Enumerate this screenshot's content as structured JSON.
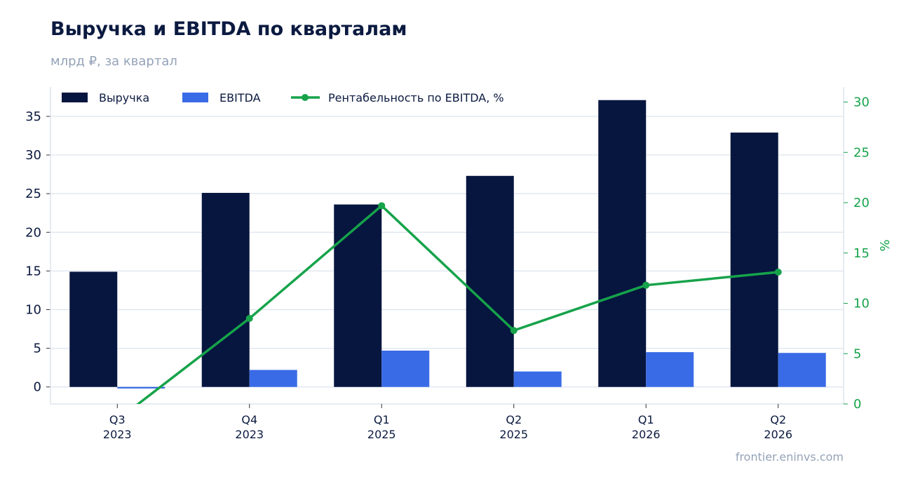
{
  "header": {
    "title": "Выручка и EBITDA по кварталам",
    "subtitle": "млрд ₽, за квартал"
  },
  "footer": {
    "source": "frontier.eninvs.com"
  },
  "colors": {
    "revenue": "#06163f",
    "ebitda": "#3a6be6",
    "margin": "#16a34a",
    "grid": "#dde3ee",
    "text": "#0b1a40"
  },
  "chart_data": {
    "type": "bar",
    "categories": [
      {
        "quarter": "Q3",
        "year": "2023"
      },
      {
        "quarter": "Q4",
        "year": "2023"
      },
      {
        "quarter": "Q1",
        "year": "2025"
      },
      {
        "quarter": "Q2",
        "year": "2025"
      },
      {
        "quarter": "Q1",
        "year": "2026"
      },
      {
        "quarter": "Q2",
        "year": "2026"
      }
    ],
    "series": [
      {
        "name": "Выручка",
        "kind": "bar",
        "axis": "left",
        "values": [
          14.9,
          25.1,
          23.6,
          27.3,
          37.1,
          32.9
        ]
      },
      {
        "name": "EBITDA",
        "kind": "bar",
        "axis": "left",
        "values": [
          -0.2,
          2.2,
          4.7,
          2.0,
          4.5,
          4.4
        ]
      },
      {
        "name": "Рентабельность по EBITDA, %",
        "kind": "line",
        "axis": "right",
        "values": [
          -1.6,
          8.5,
          19.7,
          7.3,
          11.8,
          13.1
        ]
      }
    ],
    "y_left": {
      "ylim": [
        -2.2,
        38.8
      ],
      "ticks": [
        0,
        5,
        10,
        15,
        20,
        25,
        30,
        35
      ]
    },
    "y_right": {
      "label": "%",
      "ylim": [
        0,
        31.5
      ],
      "ticks": [
        0,
        5,
        10,
        15,
        20,
        25,
        30
      ]
    },
    "grid": true,
    "legend": "top-left"
  }
}
